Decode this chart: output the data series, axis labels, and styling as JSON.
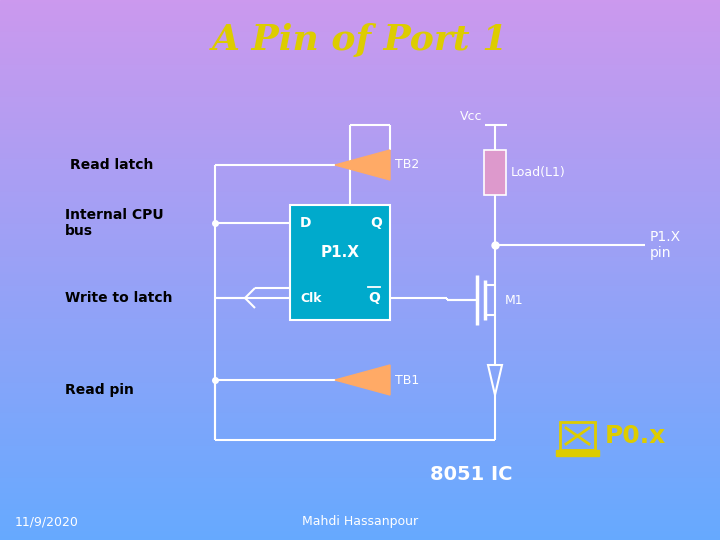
{
  "title": "A Pin of Port 1",
  "title_color": "#ddcc00",
  "title_fontsize": 26,
  "wire_color": "#ffffff",
  "wire_lw": 1.5,
  "latch_box_color": "#00aacc",
  "resistor_color": "#dd99cc",
  "triangle_color": "#ffaa66",
  "vcc_label": "Vcc",
  "load_label": "Load(L1)",
  "tb1_label": "TB1",
  "tb2_label": "TB2",
  "m1_label": "M1",
  "p1x_label": "P1.X\npin",
  "read_latch_label": "Read latch",
  "internal_cpu_label": "Internal CPU\nbus",
  "write_latch_label": "Write to latch",
  "read_pin_label": "Read pin",
  "p0x_label": "P0.x",
  "bottom_left": "11/9/2020",
  "bottom_center": "Mahdi Hassanpour",
  "bottom_right": "8051 IC",
  "dot_color": "#ffffff",
  "label_black": "#000000",
  "label_white": "#ffffff"
}
